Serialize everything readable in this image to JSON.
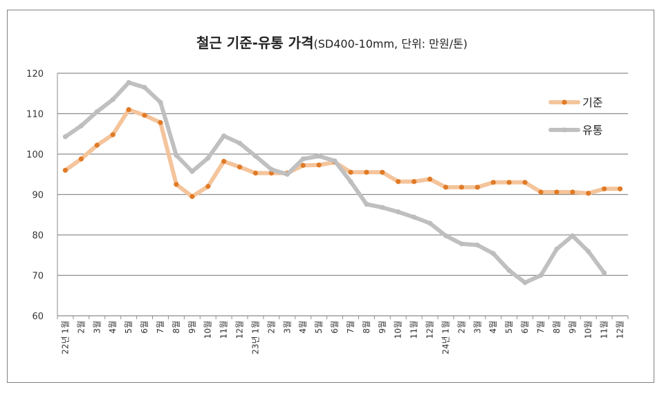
{
  "chart_data": {
    "type": "line",
    "title": "철근 기준-유통 가격",
    "subtitle": "(SD400-10mm, 단위: 만원/톤)",
    "ylim": [
      60,
      120
    ],
    "yticks": [
      60,
      70,
      80,
      90,
      100,
      110,
      120
    ],
    "grid": true,
    "legend_position": "right",
    "categories": [
      "22년 1월",
      "2월",
      "3월",
      "4월",
      "5월",
      "6월",
      "7월",
      "8월",
      "9월",
      "10월",
      "11월",
      "12월",
      "23년 1월",
      "2월",
      "3월",
      "4월",
      "5월",
      "6월",
      "7월",
      "8월",
      "9월",
      "10월",
      "11월",
      "12월",
      "24년 1월",
      "2월",
      "3월",
      "4월",
      "5월",
      "6월",
      "7월",
      "8월",
      "9월",
      "10월",
      "11월",
      "12월"
    ],
    "series": [
      {
        "name": "기준",
        "line_color": "#f4c49b",
        "marker_color": "#e07a26",
        "values": [
          96,
          98.8,
          102.2,
          104.8,
          111,
          109.6,
          107.8,
          92.5,
          89.5,
          92,
          98.2,
          96.8,
          95.3,
          95.3,
          95.3,
          97.2,
          97.3,
          98,
          95.5,
          95.5,
          95.5,
          93.2,
          93.2,
          93.8,
          91.8,
          91.8,
          91.8,
          93,
          93,
          93,
          90.6,
          90.6,
          90.6,
          90.3,
          91.4,
          91.4
        ]
      },
      {
        "name": "유통",
        "line_color": "#c0c0c0",
        "marker_color": "#bdbdbd",
        "values": [
          104.3,
          107,
          110.5,
          113.5,
          117.7,
          116.5,
          112.8,
          99.7,
          95.7,
          99,
          104.5,
          102.7,
          99.5,
          96.2,
          95,
          98.8,
          99.5,
          98.3,
          93.2,
          87.6,
          86.8,
          85.7,
          84.4,
          82.9,
          79.8,
          77.8,
          77.5,
          75.4,
          71.2,
          68.2,
          70,
          76.5,
          79.8,
          75.9,
          70.6,
          null
        ]
      }
    ]
  }
}
